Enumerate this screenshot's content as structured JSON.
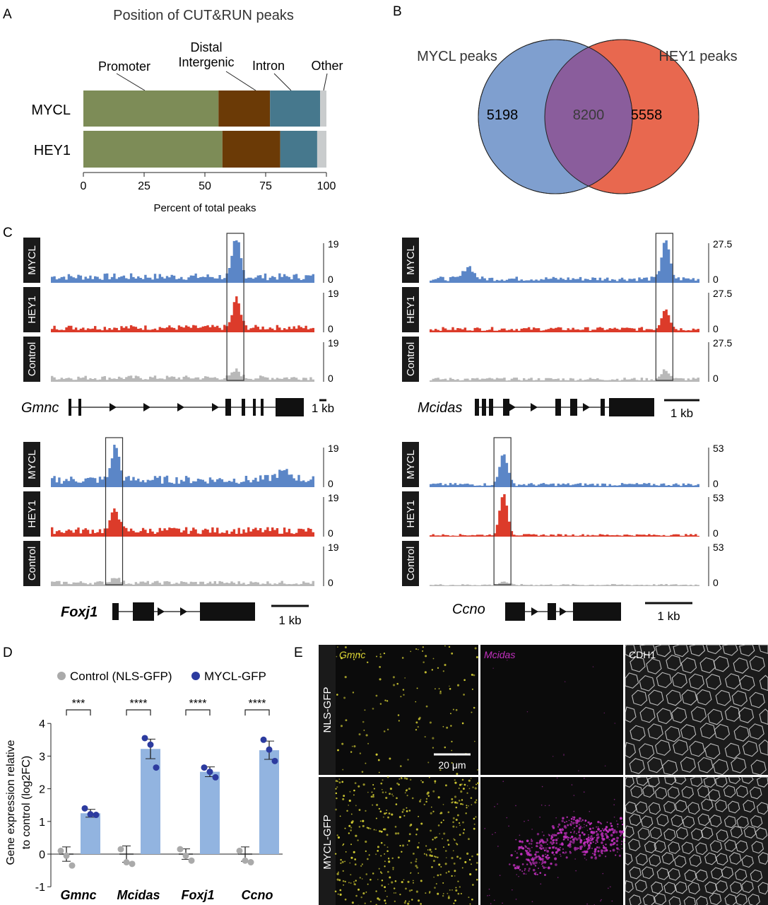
{
  "chart_data": [
    {
      "panel": "A",
      "type": "bar",
      "stacked": true,
      "orientation": "horizontal",
      "title": "Position of CUT&RUN peaks",
      "xlabel": "Percent of total peaks",
      "xlim": [
        0,
        100
      ],
      "xticks": [
        "0",
        "25",
        "50",
        "75",
        "100"
      ],
      "categories": [
        "MYCL",
        "HEY1"
      ],
      "legend_labels": [
        "Promoter",
        "Distal Intergenic",
        "Intron",
        "Other"
      ],
      "series": [
        {
          "name": "Promoter",
          "color": "#7d8c57",
          "values": [
            55.6,
            57.2
          ]
        },
        {
          "name": "Distal Intergenic",
          "color": "#6b3a06",
          "values": [
            21.2,
            23.8
          ]
        },
        {
          "name": "Intron",
          "color": "#46788d",
          "values": [
            20.6,
            15.2
          ]
        },
        {
          "name": "Other",
          "color": "#c9cccd",
          "values": [
            2.6,
            3.8
          ]
        }
      ]
    },
    {
      "panel": "B",
      "type": "venn",
      "sets": [
        {
          "name": "MYCL peaks",
          "color": "#7f9fcf",
          "only": "5198"
        },
        {
          "name": "HEY1 peaks",
          "color": "#e8684f",
          "only": "5558"
        }
      ],
      "overlap": {
        "value": "8200",
        "color": "#8a5d9c"
      }
    },
    {
      "panel": "C",
      "type": "area",
      "description": "CUT&RUN coverage tracks",
      "track_labels": [
        "MYCL",
        "HEY1",
        "Control"
      ],
      "track_colors": {
        "MYCL": "#5b86c7",
        "HEY1": "#dc3b2a",
        "Control": "#b9b9b9"
      },
      "loci": [
        {
          "gene": "Gmnc",
          "ymax": "19",
          "ymin": "0",
          "scale": "1 kb",
          "peak_at": 0.7
        },
        {
          "gene": "Mcidas",
          "ymax": "27.5",
          "ymin": "0",
          "scale": "1 kb",
          "peak_at": 0.87
        },
        {
          "gene": "Foxj1",
          "ymax": "19",
          "ymin": "0",
          "scale": "1 kb",
          "peak_at": 0.24
        },
        {
          "gene": "Ccno",
          "ymax": "53",
          "ymin": "0",
          "scale": "1 kb",
          "peak_at": 0.27
        }
      ]
    },
    {
      "panel": "D",
      "type": "bar",
      "ylabel": "Gene expression relative to control (log2FC)",
      "ylim": [
        -1,
        4
      ],
      "yticks": [
        "-1",
        "0",
        "1",
        "2",
        "3",
        "4"
      ],
      "categories": [
        "Gmnc",
        "Mcidas",
        "Foxj1",
        "Ccno"
      ],
      "significance": [
        "***",
        "****",
        "****",
        "****"
      ],
      "series": [
        {
          "name": "Control (NLS-GFP)",
          "color": "#aaaaaa",
          "values": [
            0,
            0,
            0,
            0
          ],
          "errors": [
            0.22,
            0.25,
            0.16,
            0.22
          ],
          "points": [
            [
              0.1,
              -0.05,
              -0.35
            ],
            [
              0.15,
              -0.25,
              -0.3
            ],
            [
              0.15,
              -0.05,
              -0.2
            ],
            [
              0.1,
              -0.2,
              -0.25
            ]
          ]
        },
        {
          "name": "MYCL-GFP",
          "color": "#2c3b9f",
          "bar_color": "#92b4e0",
          "values": [
            1.25,
            3.22,
            2.52,
            3.18
          ],
          "errors": [
            0.12,
            0.3,
            0.15,
            0.28
          ],
          "points": [
            [
              1.4,
              1.22,
              1.2
            ],
            [
              3.55,
              3.35,
              2.65
            ],
            [
              2.65,
              2.52,
              2.35
            ],
            [
              3.5,
              3.2,
              2.85
            ]
          ]
        }
      ]
    }
  ],
  "panel_letters": [
    "A",
    "B",
    "C",
    "D",
    "E"
  ],
  "panel_e": {
    "channels": [
      "Gmnc",
      "Mcidas",
      "CDH1"
    ],
    "channel_colors": [
      "#d8d234",
      "#c330c0",
      "#ffffff"
    ],
    "rows": [
      "NLS-GFP",
      "MYCL-GFP"
    ],
    "scale_bar": "20 μm"
  }
}
